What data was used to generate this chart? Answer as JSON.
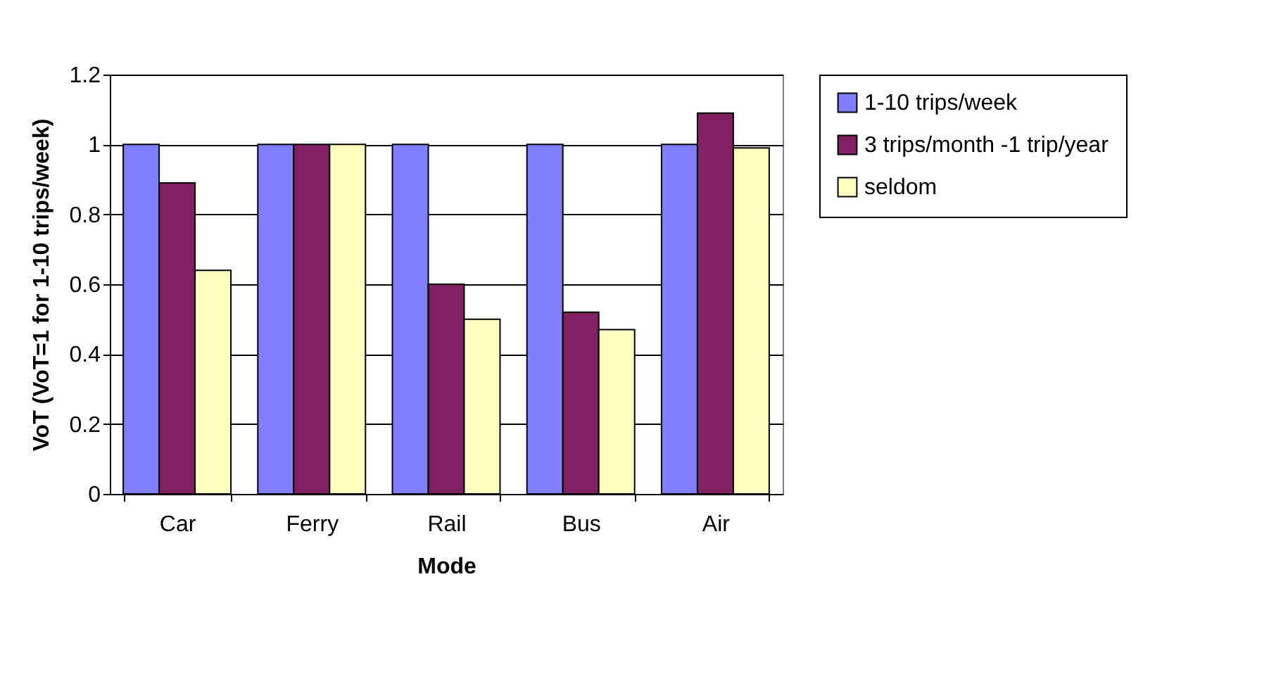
{
  "chart_data": {
    "type": "bar",
    "xlabel": "Mode",
    "ylabel": "VoT (VoT=1 for 1-10 trips/week)",
    "categories": [
      "Car",
      "Ferry",
      "Rail",
      "Bus",
      "Air"
    ],
    "series": [
      {
        "name": "1-10 trips/week",
        "color": "#8080ff",
        "values": [
          1,
          1,
          1,
          1,
          1
        ]
      },
      {
        "name": "3 trips/month -1 trip/year",
        "color": "#802060",
        "values": [
          0.89,
          1,
          0.6,
          0.52,
          1.09
        ]
      },
      {
        "name": "seldom",
        "color": "#ffffc0",
        "values": [
          0.64,
          1,
          0.5,
          0.47,
          0.99
        ]
      }
    ],
    "ylim": [
      0,
      1.2
    ],
    "yticks": [
      0,
      0.2,
      0.4,
      0.6,
      0.8,
      1,
      1.2
    ],
    "grid": "y",
    "legend": "right"
  }
}
